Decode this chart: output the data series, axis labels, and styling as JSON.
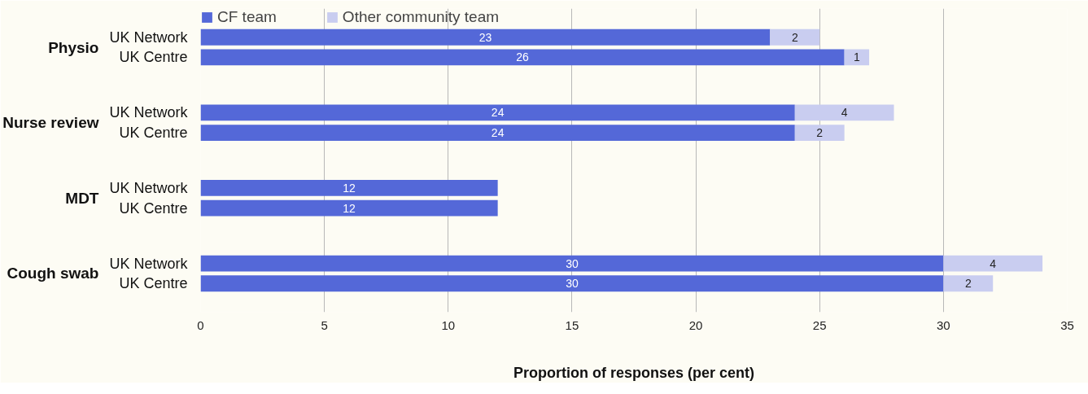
{
  "chart_data": {
    "type": "bar",
    "orientation": "horizontal",
    "stacked": true,
    "categories": [
      "UK Network",
      "UK Centre",
      "UK Network",
      "UK Centre",
      "UK Network",
      "UK Centre",
      "UK Network",
      "UK Centre"
    ],
    "annotations": [
      "Physio",
      "Nurse review",
      "MDT",
      "Cough swab"
    ],
    "series": [
      {
        "name": "CF team",
        "color": "#5468d8",
        "values": [
          23,
          26,
          24,
          24,
          12,
          12,
          30,
          30
        ],
        "value_labels": [
          "23",
          "26",
          "24",
          "24",
          "12",
          "12",
          "30",
          "30"
        ]
      },
      {
        "name": "Other community team",
        "color": "#c9cdf0",
        "values": [
          2,
          1,
          4,
          2,
          0,
          0,
          4,
          2
        ],
        "value_labels": [
          "2",
          "1",
          "4",
          "2",
          null,
          null,
          "4",
          "2"
        ]
      }
    ],
    "xlabel": "Proportion of responses (per cent)",
    "xlim": [
      0,
      35
    ],
    "xticks": [
      0,
      5,
      10,
      15,
      20,
      25,
      30,
      35
    ],
    "grid": "x",
    "legend": "top left"
  }
}
